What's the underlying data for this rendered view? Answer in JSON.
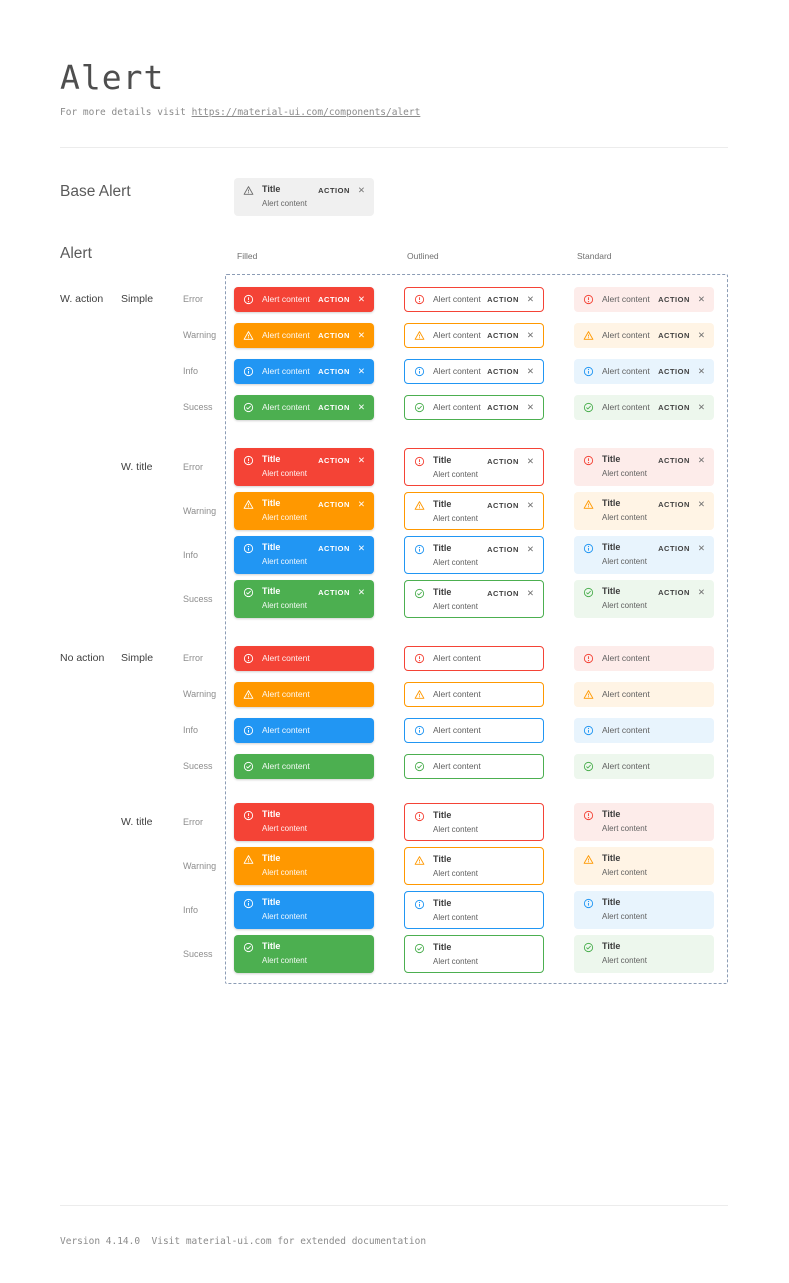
{
  "page": {
    "title": "Alert",
    "subtitle": {
      "prefix": "For more details visit ",
      "link": "https://material-ui.com/components/alert"
    },
    "footer": "Version 4.14.0  Visit material-ui.com for extended documentation"
  },
  "base_alert": {
    "section_label": "Base Alert",
    "title": "Title",
    "content": "Alert content",
    "action": "ACTION",
    "close_glyph": "✕"
  },
  "grid": {
    "section_label": "Alert",
    "variant_headers": [
      "Filled",
      "Outlined",
      "Standard"
    ],
    "variants": [
      "filled",
      "outlined",
      "standard"
    ],
    "groups": [
      {
        "label": "W. action",
        "with_action": true,
        "subgroups": [
          {
            "label": "Simple",
            "with_title": false
          },
          {
            "label": "W. title",
            "with_title": true
          }
        ]
      },
      {
        "label": "No action",
        "with_action": false,
        "subgroups": [
          {
            "label": "Simple",
            "with_title": false
          },
          {
            "label": "W. title",
            "with_title": true
          }
        ]
      }
    ],
    "severities": [
      {
        "label": "Error",
        "key": "error",
        "icon": "error-outline-icon"
      },
      {
        "label": "Warning",
        "key": "warning",
        "icon": "warning-icon"
      },
      {
        "label": "Info",
        "key": "info",
        "icon": "info-icon"
      },
      {
        "label": "Sucess",
        "key": "success",
        "icon": "check-circle-icon"
      }
    ],
    "alert": {
      "title": "Title",
      "content": "Alert content",
      "action": "ACTION",
      "close_glyph": "✕"
    }
  },
  "colors": {
    "error": {
      "main": "#f44336",
      "standard_bg": "#fdecea"
    },
    "warning": {
      "main": "#ff9800",
      "standard_bg": "#fff4e5"
    },
    "info": {
      "main": "#2196f3",
      "standard_bg": "#e8f4fd"
    },
    "success": {
      "main": "#4caf50",
      "standard_bg": "#edf7ed"
    },
    "base_bg": "#f0f0f0",
    "dashed_border": "#8c9cb5"
  }
}
